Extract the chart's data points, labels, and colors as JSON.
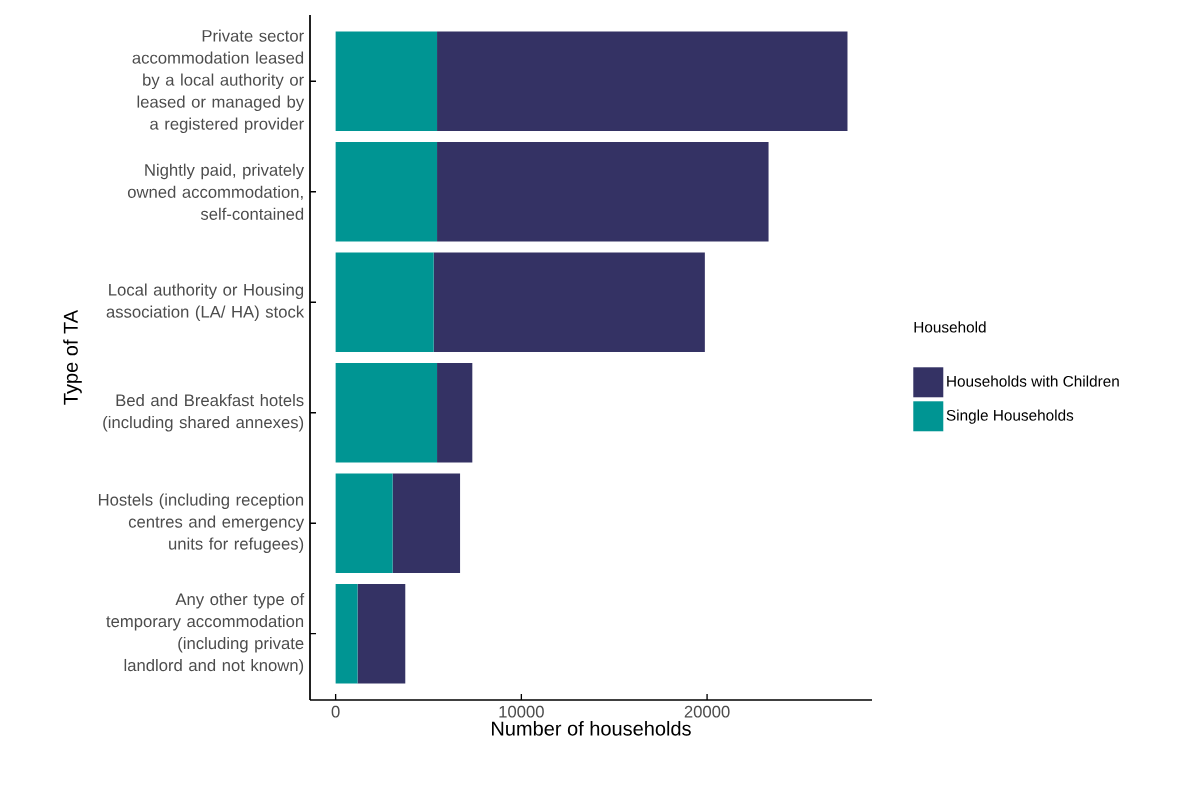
{
  "chart_data": {
    "type": "bar",
    "orientation": "horizontal",
    "stacked": true,
    "xlabel": "Number of households",
    "ylabel": "Type of TA",
    "legend_title": "Household",
    "legend": "right",
    "categories": [
      "Private sector accommodation leased by a local authority or leased or managed by a registered provider",
      "Nightly paid, privately owned accommodation, self-contained",
      "Local authority or Housing association (LA/ HA) stock",
      "Bed and Breakfast hotels (including shared annexes)",
      "Hostels (including reception centres and emergency units for refugees)",
      "Any other type of temporary accommodation (including private landlord and not known)"
    ],
    "series": [
      {
        "name": "Single Households",
        "color": "#009593",
        "values": [
          5460,
          5460,
          5280,
          5460,
          3070,
          1180
        ]
      },
      {
        "name": "Households with Children",
        "color": "#343264",
        "values": [
          22100,
          17850,
          14600,
          1900,
          3630,
          2570
        ]
      }
    ],
    "xlim": [
      -1380,
      28880
    ],
    "xticks": [
      0,
      10000,
      20000
    ],
    "grid": false
  }
}
